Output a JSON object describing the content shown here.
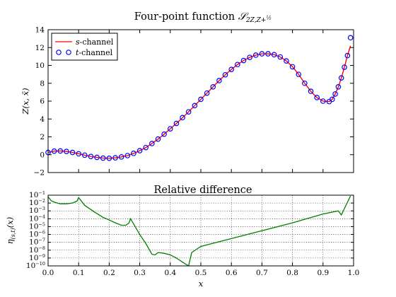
{
  "chart_data": [
    {
      "type": "line",
      "title": "Four-point function",
      "title_math": "S_{2Z,Z+1/2}",
      "xlabel": "",
      "ylabel": "Z(x, x̄)",
      "xlim": [
        0.0,
        1.0
      ],
      "ylim": [
        -2,
        14
      ],
      "xticks": [],
      "yticks": [
        -2,
        0,
        2,
        4,
        6,
        8,
        10,
        12,
        14
      ],
      "ytick_labels": [
        "−2",
        "0",
        "2",
        "4",
        "6",
        "8",
        "10",
        "12",
        "14"
      ],
      "grid": false,
      "legend_position": "top-left",
      "series": [
        {
          "name": "s-channel",
          "name_parts": [
            "s",
            "-channel"
          ],
          "style": "line",
          "color": "#ff0000",
          "x": [
            0.0,
            0.02,
            0.04,
            0.06,
            0.08,
            0.1,
            0.12,
            0.14,
            0.16,
            0.18,
            0.2,
            0.22,
            0.24,
            0.26,
            0.28,
            0.3,
            0.32,
            0.34,
            0.36,
            0.38,
            0.4,
            0.42,
            0.44,
            0.46,
            0.48,
            0.5,
            0.52,
            0.54,
            0.56,
            0.58,
            0.6,
            0.62,
            0.64,
            0.66,
            0.68,
            0.7,
            0.72,
            0.74,
            0.76,
            0.78,
            0.8,
            0.82,
            0.84,
            0.86,
            0.88,
            0.9,
            0.92,
            0.93,
            0.94,
            0.95,
            0.96,
            0.97,
            0.98,
            0.99
          ],
          "y": [
            0.25,
            0.4,
            0.42,
            0.36,
            0.25,
            0.1,
            -0.05,
            -0.2,
            -0.3,
            -0.38,
            -0.4,
            -0.35,
            -0.25,
            -0.1,
            0.15,
            0.45,
            0.8,
            1.25,
            1.75,
            2.3,
            2.9,
            3.5,
            4.15,
            4.8,
            5.5,
            6.2,
            6.9,
            7.6,
            8.3,
            8.95,
            9.55,
            10.1,
            10.55,
            10.9,
            11.15,
            11.3,
            11.3,
            11.2,
            10.95,
            10.5,
            9.85,
            9.0,
            8.0,
            7.1,
            6.4,
            6.0,
            5.95,
            6.2,
            6.8,
            7.6,
            8.6,
            9.8,
            11.1,
            12.2
          ]
        },
        {
          "name": "t-channel",
          "name_parts": [
            "t",
            "-channel"
          ],
          "style": "markers",
          "color": "#0000ff",
          "x": [
            0.0,
            0.02,
            0.04,
            0.06,
            0.08,
            0.1,
            0.12,
            0.14,
            0.16,
            0.18,
            0.2,
            0.22,
            0.24,
            0.26,
            0.28,
            0.3,
            0.32,
            0.34,
            0.36,
            0.38,
            0.4,
            0.42,
            0.44,
            0.46,
            0.48,
            0.5,
            0.52,
            0.54,
            0.56,
            0.58,
            0.6,
            0.62,
            0.64,
            0.66,
            0.68,
            0.7,
            0.72,
            0.74,
            0.76,
            0.78,
            0.8,
            0.82,
            0.84,
            0.86,
            0.88,
            0.9,
            0.92,
            0.93,
            0.94,
            0.95,
            0.96,
            0.97,
            0.98,
            0.99
          ],
          "y": [
            0.25,
            0.4,
            0.42,
            0.36,
            0.25,
            0.1,
            -0.05,
            -0.2,
            -0.3,
            -0.38,
            -0.4,
            -0.35,
            -0.25,
            -0.1,
            0.15,
            0.45,
            0.8,
            1.25,
            1.75,
            2.3,
            2.9,
            3.5,
            4.15,
            4.8,
            5.5,
            6.2,
            6.9,
            7.6,
            8.3,
            8.95,
            9.55,
            10.1,
            10.55,
            10.9,
            11.15,
            11.3,
            11.3,
            11.2,
            10.95,
            10.5,
            9.85,
            9.0,
            8.0,
            7.1,
            6.4,
            6.0,
            5.95,
            6.2,
            6.8,
            7.6,
            8.6,
            9.8,
            11.1,
            13.1
          ]
        }
      ]
    },
    {
      "type": "line",
      "title": "Relative difference",
      "xlabel": "x",
      "ylabel": "η(s,t)(x)",
      "ylabel_main": "η",
      "ylabel_sub": "(s,t)",
      "ylabel_tail": "(x)",
      "xlim": [
        0.0,
        1.0
      ],
      "xticks": [
        0.0,
        0.1,
        0.2,
        0.3,
        0.4,
        0.5,
        0.6,
        0.7,
        0.8,
        0.9,
        1.0
      ],
      "xtick_labels": [
        "0.0",
        "0.1",
        "0.2",
        "0.3",
        "0.4",
        "0.5",
        "0.6",
        "0.7",
        "0.8",
        "0.9",
        "1.0"
      ],
      "yscale": "log",
      "ylim": [
        1e-10,
        0.1
      ],
      "ytick_exponents": [
        -1,
        -2,
        -3,
        -4,
        -5,
        -6,
        -7,
        -8,
        -9,
        -10
      ],
      "ytick_base": "10",
      "grid": true,
      "series": [
        {
          "color": "#007f00",
          "x": [
            0.0,
            0.01,
            0.02,
            0.04,
            0.06,
            0.08,
            0.095,
            0.1,
            0.12,
            0.15,
            0.18,
            0.2,
            0.22,
            0.24,
            0.255,
            0.265,
            0.27,
            0.3,
            0.32,
            0.34,
            0.35,
            0.36,
            0.38,
            0.4,
            0.42,
            0.44,
            0.46,
            0.47,
            0.5,
            0.6,
            0.7,
            0.8,
            0.9,
            0.95,
            0.96,
            0.97,
            0.99
          ],
          "y": [
            0.06,
            0.02,
            0.013,
            0.008,
            0.008,
            0.01,
            0.018,
            0.05,
            0.005,
            0.0008,
            0.00015,
            7e-05,
            3e-05,
            1.5e-05,
            1.5e-05,
            3e-05,
            0.0001,
            1e-06,
            7e-08,
            3e-09,
            2.5e-09,
            5e-09,
            4e-09,
            2.5e-09,
            1e-09,
            3e-10,
            1e-10,
            5e-09,
            3e-08,
            3e-07,
            3e-06,
            3e-05,
            0.0004,
            0.001,
            0.0003,
            0.002,
            0.08
          ]
        }
      ]
    }
  ]
}
